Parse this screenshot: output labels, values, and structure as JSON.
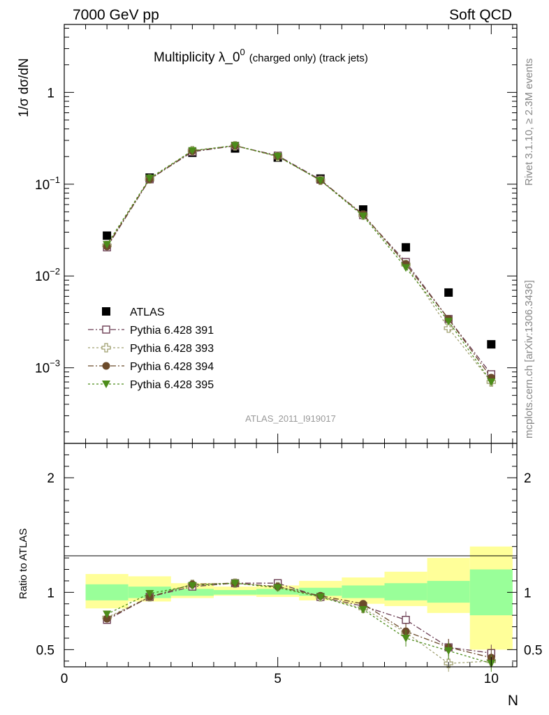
{
  "header": {
    "left": "7000 GeV pp",
    "right": "Soft QCD"
  },
  "side_labels": {
    "rivet": "Rivet 3.1.10, ≥ 2.3M events",
    "mcplots": "mcplots.cern.ch [arXiv:1306.3436]"
  },
  "colors": {
    "atlas": "#000000",
    "p391": "#6b3d53",
    "p393": "#a0a070",
    "p394": "#6b4a2a",
    "p395": "#4c8c1a",
    "band_inner": "#99ff99",
    "band_outer": "#ffff99"
  },
  "chart_data": [
    {
      "id": "main",
      "type": "scatter",
      "title": "Multiplicity λ_0",
      "title_sup": "0",
      "title_small": "(charged only) (track jets)",
      "ylabel": "1/σ dσ/dN",
      "xlabel": "",
      "analysis_label": "ATLAS_2011_I919017",
      "yscale": "log",
      "xlim": [
        0,
        10.6
      ],
      "ylim": [
        0.00015,
        5.5
      ],
      "y_ticks": [
        {
          "v": 1,
          "base": "1",
          "exp": ""
        },
        {
          "v": 0.1,
          "base": "10",
          "exp": "−1"
        },
        {
          "v": 0.01,
          "base": "10",
          "exp": "−2"
        },
        {
          "v": 0.001,
          "base": "10",
          "exp": "−3"
        }
      ],
      "x": [
        1,
        2,
        3,
        4,
        5,
        6,
        7,
        8,
        9,
        10
      ],
      "series": [
        {
          "name": "ATLAS",
          "marker": "filled-square",
          "values": [
            0.0275,
            0.118,
            0.22,
            0.245,
            0.195,
            0.115,
            0.053,
            0.0205,
            0.0066,
            0.0018
          ]
        },
        {
          "name": "Pythia 6.428 391",
          "marker": "open-square",
          "values": [
            0.0205,
            0.113,
            0.225,
            0.262,
            0.205,
            0.112,
            0.046,
            0.0142,
            0.0034,
            0.00085
          ]
        },
        {
          "name": "Pythia 6.428 393",
          "marker": "open-cross",
          "values": [
            0.0215,
            0.114,
            0.232,
            0.262,
            0.2,
            0.11,
            0.046,
            0.0133,
            0.0027,
            0.0007
          ]
        },
        {
          "name": "Pythia 6.428 394",
          "marker": "filled-circle",
          "values": [
            0.021,
            0.113,
            0.23,
            0.263,
            0.202,
            0.11,
            0.047,
            0.0135,
            0.0034,
            0.00078
          ]
        },
        {
          "name": "Pythia 6.428 395",
          "marker": "filled-triangle-down",
          "values": [
            0.022,
            0.116,
            0.232,
            0.264,
            0.201,
            0.11,
            0.045,
            0.0123,
            0.0032,
            0.0007
          ]
        }
      ]
    },
    {
      "id": "ratio",
      "type": "scatter",
      "ylabel": "Ratio to ATLAS",
      "xlabel": "N",
      "xlim": [
        0,
        10.6
      ],
      "ylim": [
        0.35,
        2.3
      ],
      "x_ticks": [
        "0",
        "5",
        "10"
      ],
      "y_ticks": [
        "0.5",
        "1",
        "2"
      ],
      "x": [
        1,
        2,
        3,
        4,
        5,
        6,
        7,
        8,
        9,
        10
      ],
      "bands": {
        "bins": [
          [
            0.5,
            1.5
          ],
          [
            1.5,
            2.5
          ],
          [
            2.5,
            3.5
          ],
          [
            3.5,
            4.5
          ],
          [
            4.5,
            5.5
          ],
          [
            5.5,
            6.5
          ],
          [
            6.5,
            7.5
          ],
          [
            7.5,
            8.5
          ],
          [
            8.5,
            9.5
          ],
          [
            9.5,
            10.5
          ]
        ],
        "inner": [
          [
            0.93,
            1.07
          ],
          [
            0.95,
            1.05
          ],
          [
            0.97,
            1.03
          ],
          [
            0.98,
            1.02
          ],
          [
            0.98,
            1.03
          ],
          [
            0.97,
            1.04
          ],
          [
            0.95,
            1.06
          ],
          [
            0.93,
            1.08
          ],
          [
            0.91,
            1.1
          ],
          [
            0.8,
            1.2
          ]
        ],
        "outer": [
          [
            0.86,
            1.16
          ],
          [
            0.92,
            1.14
          ],
          [
            0.95,
            1.08
          ],
          [
            0.97,
            1.05
          ],
          [
            0.96,
            1.06
          ],
          [
            0.93,
            1.1
          ],
          [
            0.9,
            1.13
          ],
          [
            0.88,
            1.18
          ],
          [
            0.82,
            1.3
          ],
          [
            0.5,
            1.4
          ]
        ]
      },
      "series": [
        {
          "name": "Pythia 6.428 391",
          "values": [
            0.76,
            0.96,
            1.05,
            1.08,
            1.08,
            0.96,
            0.88,
            0.76,
            0.52,
            0.47
          ]
        },
        {
          "name": "Pythia 6.428 393",
          "values": [
            0.78,
            0.96,
            1.07,
            1.08,
            1.05,
            0.96,
            0.86,
            0.65,
            0.38,
            0.4
          ]
        },
        {
          "name": "Pythia 6.428 394",
          "values": [
            0.77,
            0.96,
            1.07,
            1.08,
            1.05,
            0.97,
            0.9,
            0.66,
            0.52,
            0.43
          ]
        },
        {
          "name": "Pythia 6.428 395",
          "values": [
            0.81,
            0.99,
            1.06,
            1.08,
            1.04,
            0.96,
            0.85,
            0.6,
            0.49,
            0.38
          ]
        }
      ]
    }
  ]
}
